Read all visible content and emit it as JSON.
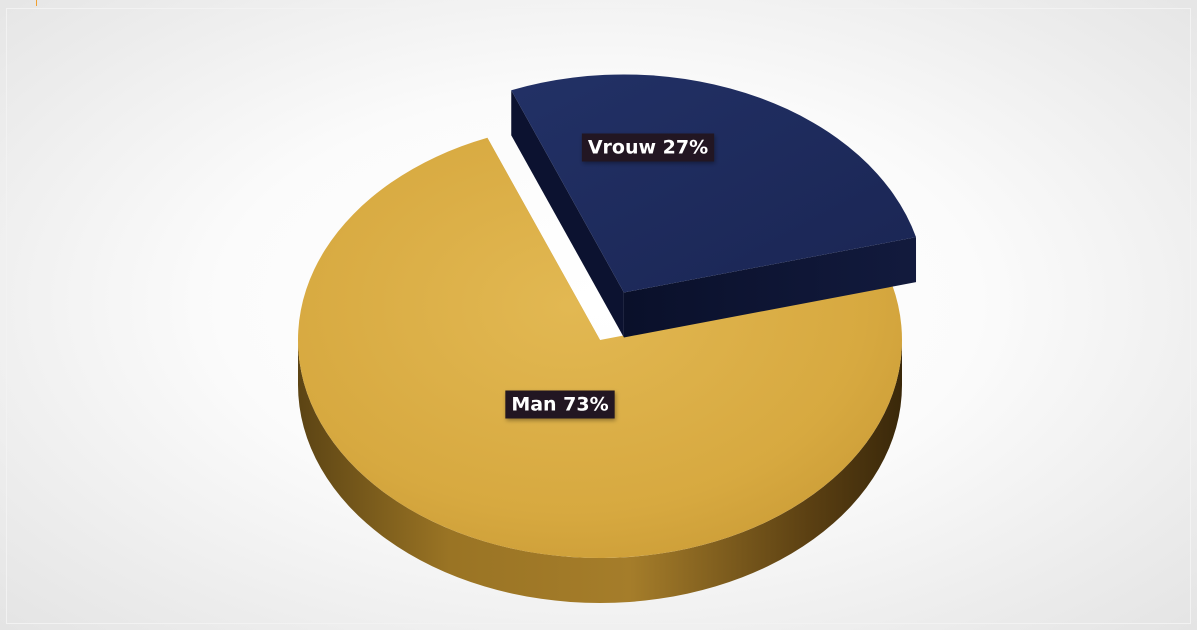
{
  "chart_data": {
    "type": "pie",
    "style": "3d",
    "slices": [
      {
        "label": "Man 73%",
        "category": "Man",
        "value": 73,
        "color": "#d7a940",
        "exploded": false
      },
      {
        "label": "Vrouw 27%",
        "category": "Vrouw",
        "value": 27,
        "color": "#1d2a5c",
        "exploded": true
      }
    ],
    "label_box_color": "#241920",
    "legend": "none",
    "title": ""
  }
}
